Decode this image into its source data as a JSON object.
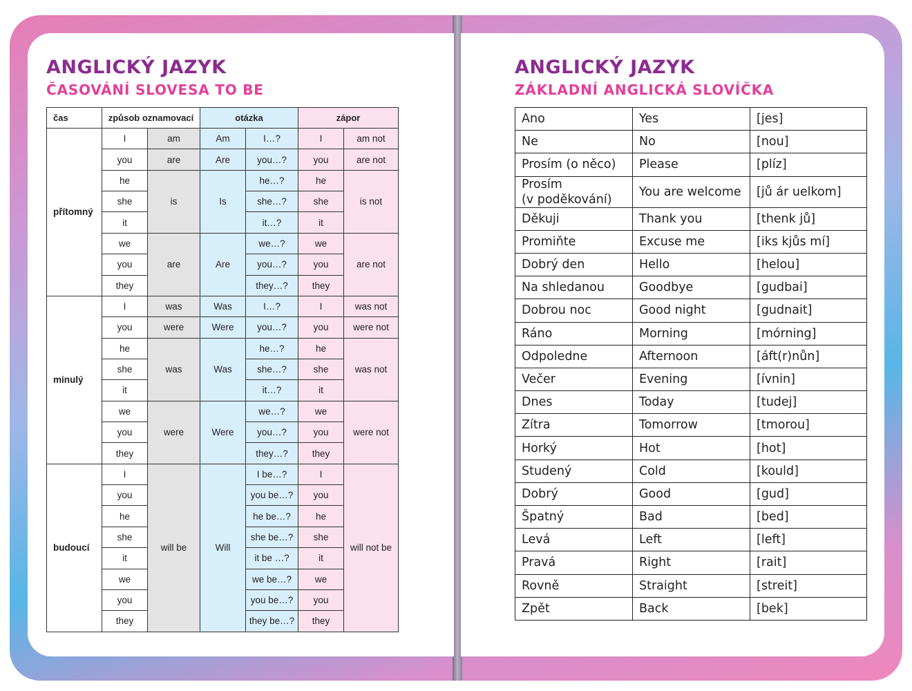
{
  "left_page": {
    "title": "ANGLICKÝ JAZYK",
    "subtitle": "ČASOVÁNÍ SLOVESA TO BE",
    "table": {
      "header": [
        "čas",
        "způsob oznamovací",
        "otázka",
        "zápor"
      ],
      "tenses": [
        {
          "name": "přítomný",
          "groups": [
            {
              "verb": "am",
              "question": "Am",
              "negation": "am not",
              "rows": [
                [
                  "I",
                  "I…?",
                  "I"
                ]
              ]
            },
            {
              "verb": "are",
              "question": "Are",
              "negation": "are not",
              "rows": [
                [
                  "you",
                  "you…?",
                  "you"
                ]
              ]
            },
            {
              "verb": "is",
              "question": "Is",
              "negation": "is not",
              "rows": [
                [
                  "he",
                  "he…?",
                  "he"
                ],
                [
                  "she",
                  "she…?",
                  "she"
                ],
                [
                  "it",
                  "it…?",
                  "it"
                ]
              ]
            },
            {
              "verb": "are",
              "question": "Are",
              "negation": "are not",
              "rows": [
                [
                  "we",
                  "we…?",
                  "we"
                ],
                [
                  "you",
                  "you…?",
                  "you"
                ],
                [
                  "they",
                  "they…?",
                  "they"
                ]
              ]
            }
          ]
        },
        {
          "name": "minulý",
          "groups": [
            {
              "verb": "was",
              "question": "Was",
              "negation": "was not",
              "rows": [
                [
                  "I",
                  "I…?",
                  "I"
                ]
              ]
            },
            {
              "verb": "were",
              "question": "Were",
              "negation": "were not",
              "rows": [
                [
                  "you",
                  "you…?",
                  "you"
                ]
              ]
            },
            {
              "verb": "was",
              "question": "Was",
              "negation": "was not",
              "rows": [
                [
                  "he",
                  "he…?",
                  "he"
                ],
                [
                  "she",
                  "she…?",
                  "she"
                ],
                [
                  "it",
                  "it…?",
                  "it"
                ]
              ]
            },
            {
              "verb": "were",
              "question": "Were",
              "negation": "were not",
              "rows": [
                [
                  "we",
                  "we…?",
                  "we"
                ],
                [
                  "you",
                  "you…?",
                  "you"
                ],
                [
                  "they",
                  "they…?",
                  "they"
                ]
              ]
            }
          ]
        },
        {
          "name": "budoucí",
          "groups": [
            {
              "verb": "will be",
              "question": "Will",
              "negation": "will not be",
              "rows": [
                [
                  "I",
                  "I be…?",
                  "I"
                ],
                [
                  "you",
                  "you be…?",
                  "you"
                ],
                [
                  "he",
                  "he be…?",
                  "he"
                ],
                [
                  "she",
                  "she be…?",
                  "she"
                ],
                [
                  "it",
                  "it be …?",
                  "it"
                ],
                [
                  "we",
                  "we be…?",
                  "we"
                ],
                [
                  "you",
                  "you be…?",
                  "you"
                ],
                [
                  "they",
                  "they be…?",
                  "they"
                ]
              ]
            }
          ]
        }
      ]
    }
  },
  "right_page": {
    "title": "ANGLICKÝ JAZYK",
    "subtitle": "ZÁKLADNÍ ANGLICKÁ SLOVÍČKA",
    "table": {
      "rows": [
        [
          "Ano",
          "Yes",
          "[jes]"
        ],
        [
          "Ne",
          "No",
          "[nou]"
        ],
        [
          "Prosím (o něco)",
          "Please",
          "[plíz]"
        ],
        [
          "Prosím\n(v poděkování)",
          "You are welcome",
          "[jů ár uelkom]"
        ],
        [
          "Děkuji",
          "Thank you",
          "[thenk jů]"
        ],
        [
          "Promiňte",
          "Excuse me",
          "[iks kjůs mí]"
        ],
        [
          "Dobrý den",
          "Hello",
          "[helou]"
        ],
        [
          "Na shledanou",
          "Goodbye",
          "[gudbai]"
        ],
        [
          "Dobrou noc",
          "Good night",
          "[gudnait]"
        ],
        [
          "Ráno",
          "Morning",
          "[mórning]"
        ],
        [
          "Odpoledne",
          "Afternoon",
          "[áft(r)nůn]"
        ],
        [
          "Večer",
          "Evening",
          "[ívnin]"
        ],
        [
          "Dnes",
          "Today",
          "[tudej]"
        ],
        [
          "Zítra",
          "Tomorrow",
          "[tmorou]"
        ],
        [
          "Horký",
          "Hot",
          "[hot]"
        ],
        [
          "Studený",
          "Cold",
          "[kould]"
        ],
        [
          "Dobrý",
          "Good",
          "[gud]"
        ],
        [
          "Špatný",
          "Bad",
          "[bed]"
        ],
        [
          "Levá",
          "Left",
          "[left]"
        ],
        [
          "Pravá",
          "Right",
          "[rait]"
        ],
        [
          "Rovně",
          "Straight",
          "[streit]"
        ],
        [
          "Zpět",
          "Back",
          "[bek]"
        ]
      ]
    }
  }
}
